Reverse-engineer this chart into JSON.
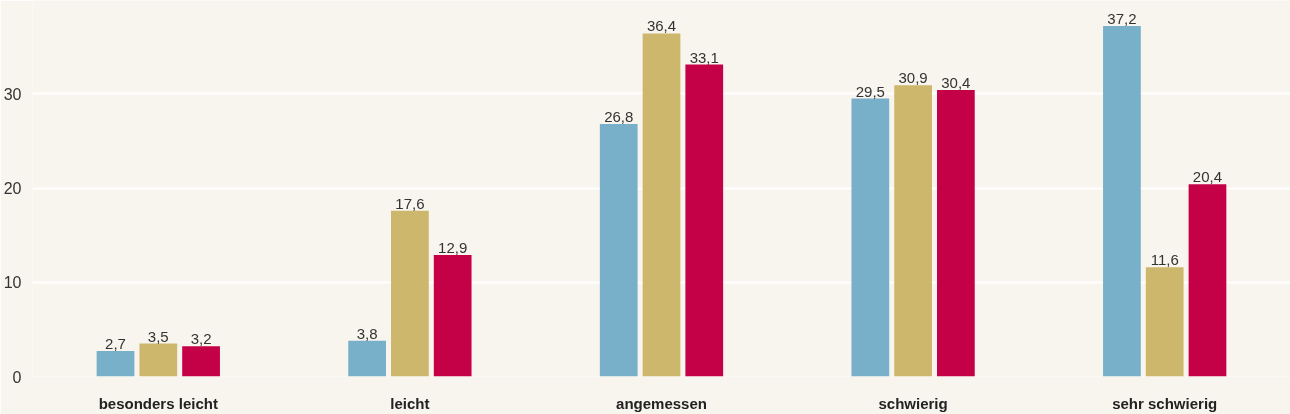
{
  "chart_data": {
    "type": "bar",
    "categories": [
      "besonders leicht",
      "leicht",
      "angemessen",
      "schwierig",
      "sehr schwierig"
    ],
    "series": [
      {
        "color": "#78afc9",
        "values": [
          2.7,
          3.8,
          26.8,
          29.5,
          37.2
        ],
        "value_labels": [
          "2,7",
          "3,8",
          "26,8",
          "29,5",
          "37,2"
        ]
      },
      {
        "color": "#cdb76d",
        "values": [
          3.5,
          17.6,
          36.4,
          30.9,
          11.6
        ],
        "value_labels": [
          "3,5",
          "17,6",
          "36,4",
          "30,9",
          "11,6"
        ]
      },
      {
        "color": "#c40046",
        "values": [
          3.2,
          12.9,
          33.1,
          30.4,
          20.4
        ],
        "value_labels": [
          "3,2",
          "12,9",
          "33,1",
          "30,4",
          "20,4"
        ]
      }
    ],
    "ylim": [
      0,
      39.9
    ],
    "yticks": [
      0,
      10,
      20,
      30
    ],
    "grid": "y"
  }
}
